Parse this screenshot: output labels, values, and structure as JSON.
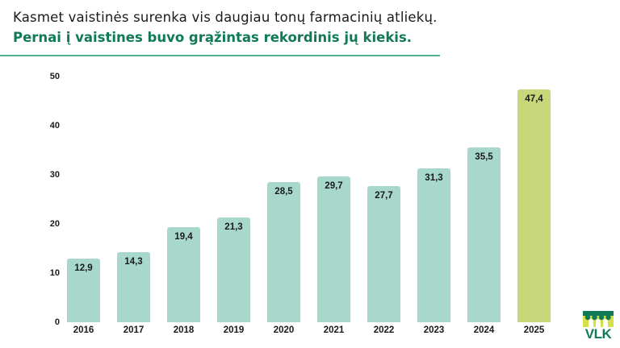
{
  "header": {
    "title_line1": "Kasmet vaistinės surenka vis daugiau tonų farmacinių atliekų.",
    "title_line2": "Pernai į vaistines buvo grąžintas rekordinis jų kiekis."
  },
  "colors": {
    "title_accent": "#0f7a55",
    "rule": "#4cb08c",
    "bar_default": "#a8d8cb",
    "bar_highlight": "#c7d77a",
    "logo_dark": "#0f7a55",
    "logo_light": "#d6e04a"
  },
  "yaxis": {
    "ticks": [
      "0",
      "10",
      "20",
      "30",
      "40",
      "50"
    ]
  },
  "bars": [
    {
      "year": "2016",
      "label": "12,9"
    },
    {
      "year": "2017",
      "label": "14,3"
    },
    {
      "year": "2018",
      "label": "19,4"
    },
    {
      "year": "2019",
      "label": "21,3"
    },
    {
      "year": "2020",
      "label": "28,5"
    },
    {
      "year": "2021",
      "label": "29,7"
    },
    {
      "year": "2022",
      "label": "27,7"
    },
    {
      "year": "2023",
      "label": "31,3"
    },
    {
      "year": "2024",
      "label": "35,5"
    },
    {
      "year": "2025",
      "label": "47,4"
    }
  ],
  "logo": {
    "text": "VLK"
  },
  "chart_data": {
    "type": "bar",
    "title": "Kasmet vaistinės surenka vis daugiau tonų farmacinių atliekų. Pernai į vaistines buvo grąžintas rekordinis jų kiekis.",
    "categories": [
      "2016",
      "2017",
      "2018",
      "2019",
      "2020",
      "2021",
      "2022",
      "2023",
      "2024",
      "2025"
    ],
    "values": [
      12.9,
      14.3,
      19.4,
      21.3,
      28.5,
      29.7,
      27.7,
      31.3,
      35.5,
      47.4
    ],
    "value_labels": [
      "12,9",
      "14,3",
      "19,4",
      "21,3",
      "28,5",
      "29,7",
      "27,7",
      "31,3",
      "35,5",
      "47,4"
    ],
    "highlighted_category": "2025",
    "xlabel": "",
    "ylabel": "",
    "ylim": [
      0,
      50
    ],
    "yticks": [
      0,
      10,
      20,
      30,
      40,
      50
    ],
    "grid": false,
    "legend": false
  }
}
